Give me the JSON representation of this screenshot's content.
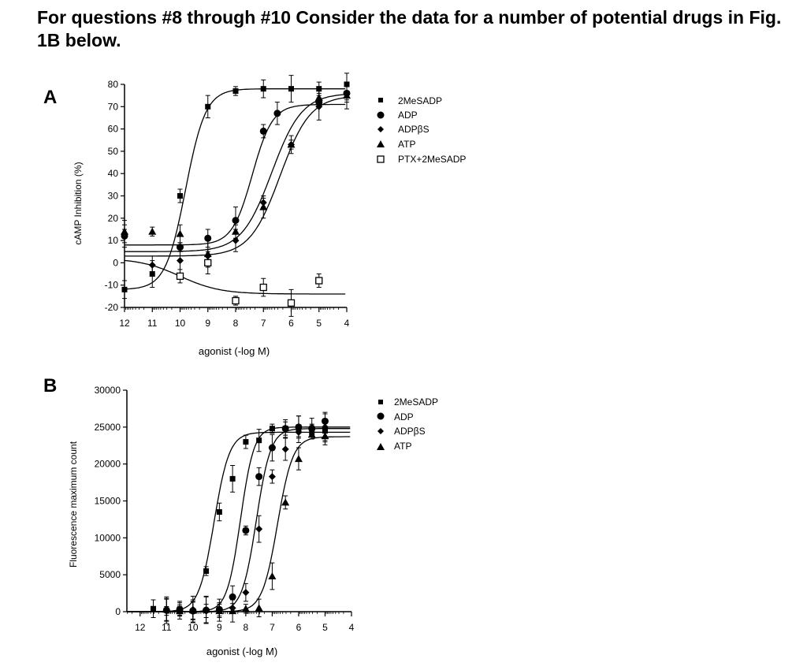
{
  "heading": "For questions #8 through #10 Consider the data for a number of potential drugs in Fig. 1B below.",
  "chart_data": [
    {
      "panel": "A",
      "type": "scatter",
      "xlabel": "agonist (-log M)",
      "ylabel": "cAMP Inhibition (%)",
      "xlim": [
        12,
        4
      ],
      "ylim": [
        -20,
        80
      ],
      "x_ticks": [
        12,
        11,
        10,
        9,
        8,
        7,
        6,
        5,
        4
      ],
      "y_ticks": [
        80,
        70,
        60,
        50,
        40,
        30,
        20,
        10,
        0,
        -10,
        -20
      ],
      "grid": false,
      "legend": "right",
      "series": [
        {
          "name": "2MeSADP",
          "marker": "square",
          "x": [
            12,
            11,
            10,
            9,
            8,
            7,
            6,
            5,
            4
          ],
          "y": [
            -12,
            -5,
            30,
            70,
            77,
            78,
            78,
            78,
            80
          ]
        },
        {
          "name": "ADP",
          "marker": "circle",
          "x": [
            12,
            10,
            9,
            8,
            7,
            6.5,
            5,
            4
          ],
          "y": [
            12,
            7,
            11,
            19,
            59,
            67,
            72,
            76
          ]
        },
        {
          "name": "ADPβS",
          "marker": "diamond",
          "x": [
            12,
            11,
            10,
            9,
            8,
            7,
            6,
            5,
            4
          ],
          "y": [
            13,
            -1,
            1,
            3,
            10,
            27,
            53,
            70,
            76
          ]
        },
        {
          "name": "ATP",
          "marker": "triangle",
          "x": [
            12,
            11,
            10,
            9,
            8,
            7,
            6,
            5,
            4
          ],
          "y": [
            14,
            14,
            13,
            4,
            14,
            25,
            53,
            74,
            75
          ]
        },
        {
          "name": "PTX+2MeSADP",
          "marker": "open-square",
          "x": [
            10,
            9,
            8,
            7,
            6,
            5
          ],
          "y": [
            -6,
            0,
            -17,
            -11,
            -18,
            -8
          ]
        }
      ]
    },
    {
      "panel": "B",
      "type": "scatter",
      "xlabel": "agonist (-log M)",
      "ylabel": "Fluorescence maximum count",
      "xlim": [
        12.5,
        4
      ],
      "ylim": [
        0,
        30000
      ],
      "x_ticks": [
        12,
        11,
        10,
        9,
        8,
        7,
        6,
        5,
        4
      ],
      "y_ticks": [
        30000,
        25000,
        20000,
        15000,
        10000,
        5000,
        0
      ],
      "grid": false,
      "legend": "right",
      "series": [
        {
          "name": "2MeSADP",
          "marker": "square",
          "x": [
            11.5,
            11,
            10.5,
            10,
            9.5,
            9,
            8.5,
            8,
            7.5,
            7,
            6.5,
            6,
            5.5,
            5
          ],
          "y": [
            400,
            200,
            300,
            100,
            5500,
            13500,
            18000,
            23000,
            23200,
            24800,
            24800,
            24700,
            24300,
            24500
          ]
        },
        {
          "name": "ADP",
          "marker": "circle",
          "x": [
            11,
            10.5,
            10,
            9.5,
            9,
            8.5,
            8,
            7.5,
            7,
            6.5,
            6,
            5.5,
            5
          ],
          "y": [
            200,
            300,
            100,
            200,
            300,
            2000,
            11000,
            18300,
            22200,
            24800,
            25000,
            24800,
            25800
          ]
        },
        {
          "name": "ADPβS",
          "marker": "diamond",
          "x": [
            11,
            10.5,
            10,
            9.5,
            9,
            8.5,
            8,
            7.5,
            7,
            6.5,
            6,
            5.5,
            5
          ],
          "y": [
            100,
            200,
            300,
            100,
            200,
            500,
            2600,
            11200,
            18300,
            22000,
            24300,
            25000,
            25000
          ]
        },
        {
          "name": "ATP",
          "marker": "triangle",
          "x": [
            11,
            10.5,
            10,
            9.5,
            9,
            8.5,
            8,
            7.5,
            7,
            6.5,
            6,
            5.5,
            5
          ],
          "y": [
            300,
            100,
            200,
            300,
            100,
            100,
            400,
            500,
            4800,
            14800,
            20700,
            24000,
            23800
          ]
        }
      ]
    }
  ]
}
